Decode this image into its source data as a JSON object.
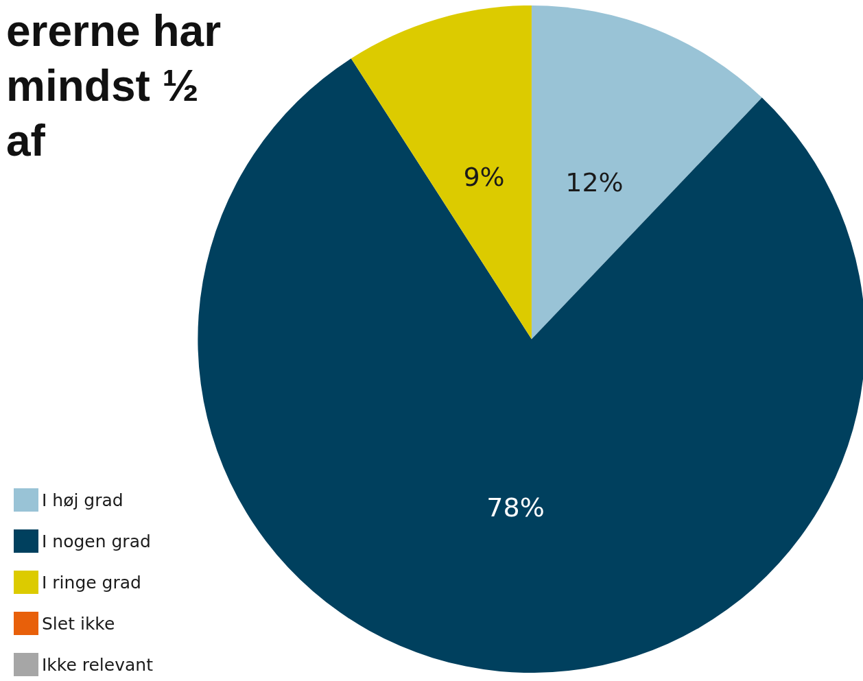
{
  "chart_data": {
    "type": "pie",
    "title": "ererne har mindst ½ af",
    "categories": [
      "I høj grad",
      "I nogen grad",
      "I ringe grad",
      "Slet ikke",
      "Ikke relevant"
    ],
    "values": [
      12,
      78,
      9,
      0,
      0
    ],
    "colors": [
      "#99c3d6",
      "#00405e",
      "#dccb00",
      "#e8600a",
      "#a6a6a6"
    ],
    "value_labels": [
      "12%",
      "78%",
      "9%",
      null,
      null
    ],
    "legend": "bottom left"
  }
}
